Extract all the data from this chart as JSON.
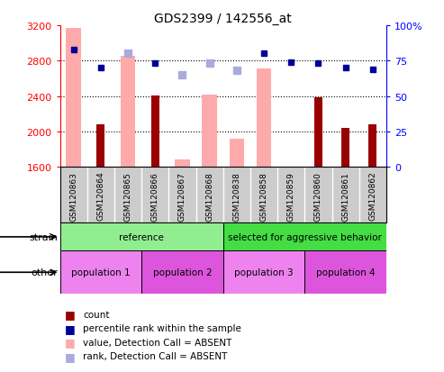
{
  "title": "GDS2399 / 142556_at",
  "samples": [
    "GSM120863",
    "GSM120864",
    "GSM120865",
    "GSM120866",
    "GSM120867",
    "GSM120868",
    "GSM120838",
    "GSM120858",
    "GSM120859",
    "GSM120860",
    "GSM120861",
    "GSM120862"
  ],
  "count_values": [
    null,
    2080,
    null,
    2410,
    null,
    null,
    null,
    null,
    null,
    2390,
    2040,
    2080
  ],
  "value_absent": [
    3170,
    null,
    2850,
    null,
    1680,
    2420,
    1920,
    2710,
    null,
    null,
    null,
    null
  ],
  "rank_absent_pct": [
    null,
    null,
    80,
    null,
    65,
    73,
    68,
    null,
    null,
    null,
    null,
    null
  ],
  "percentile_rank": [
    83,
    70,
    null,
    73,
    null,
    null,
    null,
    80,
    74,
    73,
    70,
    69
  ],
  "ylim_left": [
    1600,
    3200
  ],
  "ylim_right": [
    0,
    100
  ],
  "yticks_left": [
    1600,
    2000,
    2400,
    2800,
    3200
  ],
  "yticks_right": [
    0,
    25,
    50,
    75,
    100
  ],
  "strain_groups": [
    {
      "label": "reference",
      "start": 0,
      "end": 6,
      "color": "#90ee90"
    },
    {
      "label": "selected for aggressive behavior",
      "start": 6,
      "end": 12,
      "color": "#44dd44"
    }
  ],
  "other_groups": [
    {
      "label": "population 1",
      "start": 0,
      "end": 3,
      "color": "#ee82ee"
    },
    {
      "label": "population 2",
      "start": 3,
      "end": 6,
      "color": "#dd55dd"
    },
    {
      "label": "population 3",
      "start": 6,
      "end": 9,
      "color": "#ee82ee"
    },
    {
      "label": "population 4",
      "start": 9,
      "end": 12,
      "color": "#dd55dd"
    }
  ],
  "count_color": "#990000",
  "value_absent_color": "#ffaaaa",
  "rank_absent_color": "#aaaadd",
  "percentile_rank_color": "#000099",
  "xtick_bg": "#cccccc",
  "legend_items": [
    {
      "color": "#990000",
      "label": "count"
    },
    {
      "color": "#000099",
      "label": "percentile rank within the sample"
    },
    {
      "color": "#ffaaaa",
      "label": "value, Detection Call = ABSENT"
    },
    {
      "color": "#aaaadd",
      "label": "rank, Detection Call = ABSENT"
    }
  ]
}
